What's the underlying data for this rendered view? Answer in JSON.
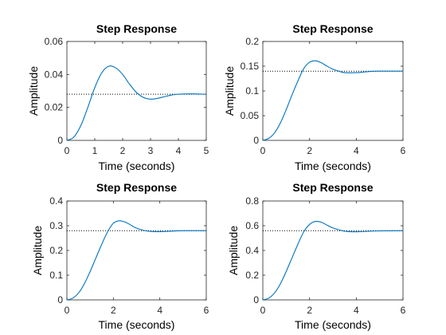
{
  "figure": {
    "background": "#ffffff",
    "axes_color": "#262626",
    "line_color": "#0072BD",
    "ref_line_color": "#000000"
  },
  "chart_data": [
    {
      "type": "line",
      "title": "Step Response",
      "xlabel": "Time (seconds)",
      "ylabel": "Amplitude",
      "xlim": [
        0,
        5
      ],
      "ylim": [
        0,
        0.06
      ],
      "xticks": [
        "0",
        "1",
        "2",
        "3",
        "4",
        "5"
      ],
      "yticks": [
        "0",
        "0.02",
        "0.04",
        "0.06"
      ],
      "final_value": 0.028,
      "grid": false,
      "series": [
        {
          "x": [
            0,
            0.25,
            0.5,
            0.75,
            1.0,
            1.25,
            1.5,
            1.75,
            2.0,
            2.25,
            2.5,
            2.75,
            3.0,
            3.25,
            3.5,
            3.75,
            4.0,
            4.5,
            5.0
          ],
          "y": [
            0,
            0.002,
            0.009,
            0.02,
            0.032,
            0.041,
            0.045,
            0.044,
            0.04,
            0.034,
            0.029,
            0.026,
            0.025,
            0.0255,
            0.0265,
            0.0275,
            0.028,
            0.0282,
            0.028
          ]
        }
      ]
    },
    {
      "type": "line",
      "title": "Step Response",
      "xlabel": "Time (seconds)",
      "ylabel": "Amplitude",
      "xlim": [
        0,
        6
      ],
      "ylim": [
        0,
        0.2
      ],
      "xticks": [
        "0",
        "2",
        "4",
        "6"
      ],
      "yticks": [
        "0",
        "0.05",
        "0.1",
        "0.15",
        "0.2"
      ],
      "final_value": 0.14,
      "grid": false,
      "series": [
        {
          "x": [
            0,
            0.25,
            0.5,
            0.75,
            1.0,
            1.25,
            1.5,
            1.75,
            2.0,
            2.25,
            2.5,
            2.75,
            3.0,
            3.25,
            3.5,
            4.0,
            4.5,
            5.0,
            6.0
          ],
          "y": [
            0,
            0.004,
            0.015,
            0.035,
            0.062,
            0.092,
            0.12,
            0.145,
            0.158,
            0.161,
            0.157,
            0.15,
            0.144,
            0.14,
            0.137,
            0.137,
            0.139,
            0.14,
            0.14
          ]
        }
      ]
    },
    {
      "type": "line",
      "title": "Step Response",
      "xlabel": "Time (seconds)",
      "ylabel": "Amplitude",
      "xlim": [
        0,
        6
      ],
      "ylim": [
        0,
        0.4
      ],
      "xticks": [
        "0",
        "2",
        "4",
        "6"
      ],
      "yticks": [
        "0",
        "0.1",
        "0.2",
        "0.3",
        "0.4"
      ],
      "final_value": 0.28,
      "grid": false,
      "series": [
        {
          "x": [
            0,
            0.25,
            0.5,
            0.75,
            1.0,
            1.25,
            1.5,
            1.75,
            2.0,
            2.25,
            2.5,
            2.75,
            3.0,
            3.5,
            4.0,
            4.5,
            5.0,
            6.0
          ],
          "y": [
            0,
            0.007,
            0.028,
            0.065,
            0.115,
            0.17,
            0.225,
            0.275,
            0.31,
            0.32,
            0.315,
            0.303,
            0.29,
            0.278,
            0.276,
            0.278,
            0.28,
            0.28
          ]
        }
      ]
    },
    {
      "type": "line",
      "title": "Step Response",
      "xlabel": "Time (seconds)",
      "ylabel": "Amplitude",
      "xlim": [
        0,
        6
      ],
      "ylim": [
        0,
        0.8
      ],
      "xticks": [
        "0",
        "2",
        "4",
        "6"
      ],
      "yticks": [
        "0",
        "0.2",
        "0.4",
        "0.6",
        "0.8"
      ],
      "final_value": 0.56,
      "grid": false,
      "series": [
        {
          "x": [
            0,
            0.25,
            0.5,
            0.75,
            1.0,
            1.25,
            1.5,
            1.75,
            2.0,
            2.25,
            2.5,
            2.75,
            3.0,
            3.5,
            4.0,
            4.5,
            5.0,
            6.0
          ],
          "y": [
            0,
            0.014,
            0.056,
            0.13,
            0.23,
            0.34,
            0.45,
            0.55,
            0.61,
            0.635,
            0.628,
            0.605,
            0.582,
            0.556,
            0.551,
            0.555,
            0.558,
            0.56
          ]
        }
      ]
    }
  ]
}
